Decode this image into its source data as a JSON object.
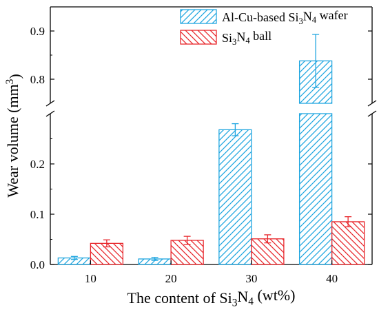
{
  "chart_data": {
    "type": "bar",
    "categories": [
      "10",
      "20",
      "30",
      "40"
    ],
    "series": [
      {
        "name": "Al-Cu-based Si3N4 wafer",
        "color": "#1fa6e0",
        "values": [
          0.013,
          0.011,
          0.268,
          0.838
        ],
        "errors": [
          0.003,
          0.003,
          0.012,
          0.055
        ]
      },
      {
        "name": "Si3N4 ball",
        "color": "#e8262b",
        "values": [
          0.042,
          0.048,
          0.051,
          0.085
        ],
        "errors": [
          0.007,
          0.008,
          0.008,
          0.01
        ]
      }
    ],
    "xlabel": "The content of Si3N4 (wt%)",
    "ylabel": "Wear volume (mm3)",
    "y_axis_break": true,
    "ylim_lower": [
      0,
      0.3
    ],
    "ylim_upper": [
      0.75,
      0.95
    ],
    "yticks_lower": [
      "0.0",
      "0.1",
      "0.2"
    ],
    "yticks_upper": [
      "0.8",
      "0.9"
    ],
    "legend_position": "top-right",
    "grid": false
  }
}
